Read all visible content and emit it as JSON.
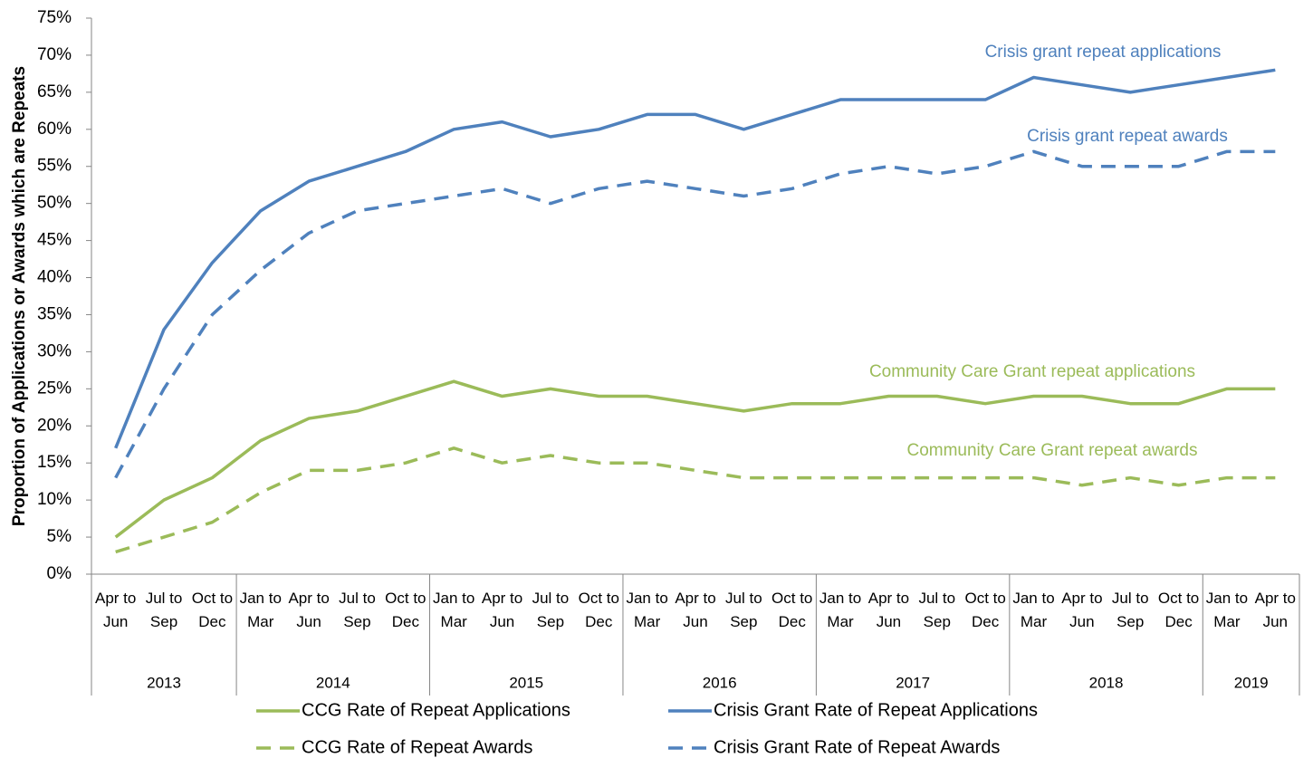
{
  "chart_data": {
    "type": "line",
    "y_label": "Proportion of Applications or Awards which are Repeats",
    "category_groups": [
      {
        "label": "2013",
        "categories": [
          "Apr to Jun",
          "Jul to Sep",
          "Oct to Dec"
        ]
      },
      {
        "label": "2014",
        "categories": [
          "Jan to Mar",
          "Apr to Jun",
          "Jul to Sep",
          "Oct to Dec"
        ]
      },
      {
        "label": "2015",
        "categories": [
          "Jan to Mar",
          "Apr to Jun",
          "Jul to Sep",
          "Oct to Dec"
        ]
      },
      {
        "label": "2016",
        "categories": [
          "Jan to Mar",
          "Apr to Jun",
          "Jul to Sep",
          "Oct to Dec"
        ]
      },
      {
        "label": "2017",
        "categories": [
          "Jan to Mar",
          "Apr to Jun",
          "Jul to Sep",
          "Oct to Dec"
        ]
      },
      {
        "label": "2018",
        "categories": [
          "Jan to Mar",
          "Apr to Jun",
          "Jul to Sep",
          "Oct to Dec"
        ]
      },
      {
        "label": "2019",
        "categories": [
          "Jan to Mar",
          "Apr to Jun"
        ]
      }
    ],
    "series": [
      {
        "name": "CCG Rate of Repeat Applications",
        "color": "#9bbb59",
        "dash": "solid",
        "values": [
          5,
          10,
          13,
          18,
          21,
          22,
          24,
          26,
          24,
          25,
          24,
          24,
          23,
          22,
          23,
          23,
          24,
          24,
          23,
          24,
          24,
          23,
          23,
          25,
          25
        ]
      },
      {
        "name": "Crisis Grant Rate of Repeat Applications",
        "color": "#4f81bd",
        "dash": "solid",
        "values": [
          17,
          33,
          42,
          49,
          53,
          55,
          57,
          60,
          61,
          59,
          60,
          62,
          62,
          60,
          62,
          64,
          64,
          64,
          64,
          67,
          66,
          65,
          66,
          67,
          68
        ]
      },
      {
        "name": "CCG Rate of Repeat Awards",
        "color": "#9bbb59",
        "dash": "dashed",
        "values": [
          3,
          5,
          7,
          11,
          14,
          14,
          15,
          17,
          15,
          16,
          15,
          15,
          14,
          13,
          13,
          13,
          13,
          13,
          13,
          13,
          12,
          13,
          12,
          13,
          13
        ]
      },
      {
        "name": "Crisis Grant Rate of Repeat Awards",
        "color": "#4f81bd",
        "dash": "dashed",
        "values": [
          13,
          25,
          35,
          41,
          46,
          49,
          50,
          51,
          52,
          50,
          52,
          53,
          52,
          51,
          52,
          54,
          55,
          54,
          55,
          57,
          55,
          55,
          55,
          57,
          57
        ]
      }
    ],
    "annotations": [
      {
        "text": "Crisis grant repeat applications",
        "color": "#4f81bd"
      },
      {
        "text": "Crisis grant repeat awards",
        "color": "#4f81bd"
      },
      {
        "text": "Community Care Grant repeat applications",
        "color": "#9bbb59"
      },
      {
        "text": "Community Care Grant repeat awards",
        "color": "#9bbb59"
      }
    ],
    "ylim": [
      0,
      75
    ],
    "yticks": [
      {
        "value": 0,
        "label": "0%"
      },
      {
        "value": 5,
        "label": "5%"
      },
      {
        "value": 10,
        "label": "10%"
      },
      {
        "value": 15,
        "label": "15%"
      },
      {
        "value": 20,
        "label": "20%"
      },
      {
        "value": 25,
        "label": "25%"
      },
      {
        "value": 30,
        "label": "30%"
      },
      {
        "value": 35,
        "label": "35%"
      },
      {
        "value": 40,
        "label": "40%"
      },
      {
        "value": 45,
        "label": "45%"
      },
      {
        "value": 50,
        "label": "50%"
      },
      {
        "value": 55,
        "label": "55%"
      },
      {
        "value": 60,
        "label": "60%"
      },
      {
        "value": 65,
        "label": "65%"
      },
      {
        "value": 70,
        "label": "70%"
      },
      {
        "value": 75,
        "label": "75%"
      }
    ],
    "grid": false
  }
}
